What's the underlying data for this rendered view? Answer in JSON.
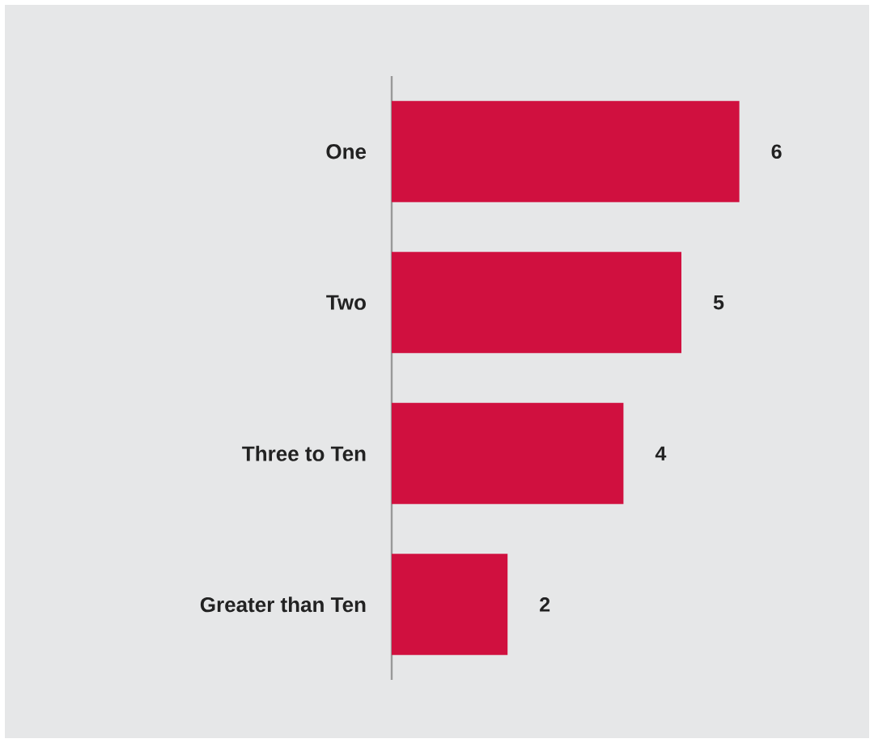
{
  "chart_data": {
    "type": "bar",
    "orientation": "horizontal",
    "categories": [
      "One",
      "Two",
      "Three to Ten",
      "Greater than Ten"
    ],
    "values": [
      6,
      5,
      4,
      2
    ],
    "color": "#d0103f",
    "tick_labels": "y",
    "data_labels": true
  }
}
